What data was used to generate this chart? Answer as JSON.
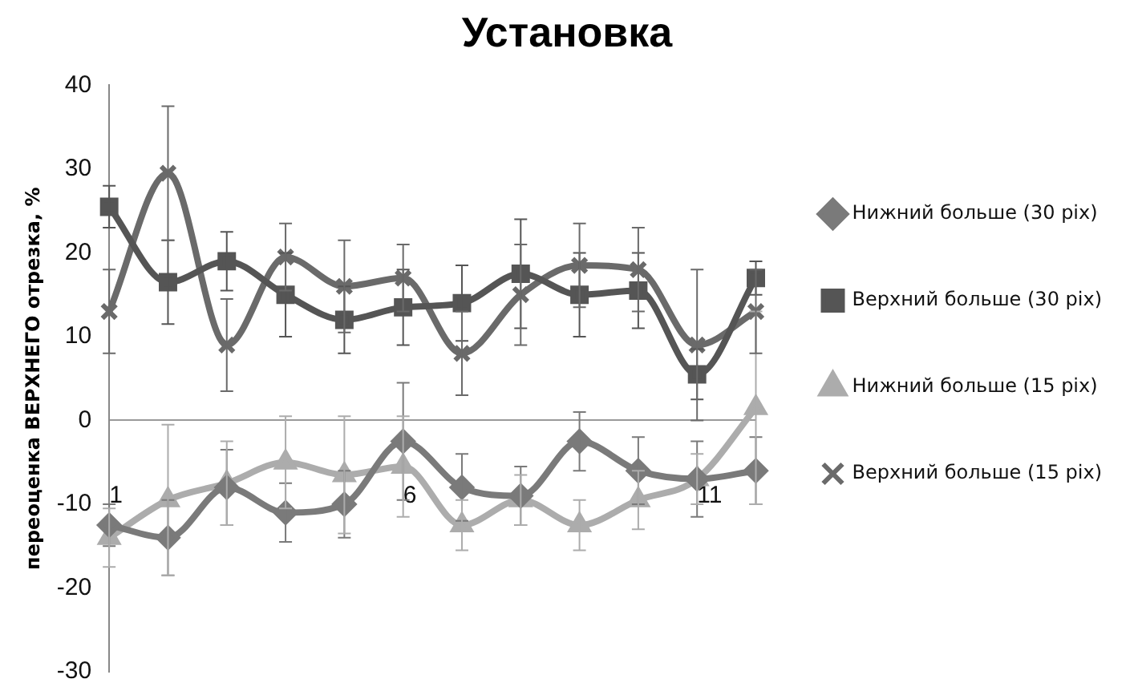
{
  "chart_data": {
    "type": "line",
    "title": "Установка",
    "ylabel": "переоценка ВЕРХНЕГО отрезка, %",
    "categories": [
      "1",
      null,
      null,
      null,
      null,
      "6",
      null,
      null,
      null,
      null,
      "11",
      null
    ],
    "ylim": [
      -30,
      40
    ],
    "yticks": [
      -30,
      -20,
      -10,
      0,
      10,
      20,
      30,
      40
    ],
    "grid": false,
    "legend": "right",
    "series": [
      {
        "name": "Нижний больше (30 pix)",
        "color": "#7a7a7a",
        "marker": "diamond",
        "values": [
          -12.5,
          -14,
          -8,
          -11,
          -10,
          -2.5,
          -8,
          -9,
          -2.5,
          -6,
          -7,
          -6
        ],
        "errors": [
          2.5,
          4.5,
          4.5,
          3.5,
          4,
          7,
          4,
          3.5,
          3.5,
          4,
          4.5,
          4
        ]
      },
      {
        "name": "Верхний больше (30 pix)",
        "color": "#555555",
        "marker": "square",
        "values": [
          25.5,
          16.5,
          19,
          15,
          12,
          13.5,
          14,
          17.5,
          15,
          15.5,
          5.5,
          17
        ],
        "errors": [
          2.5,
          5,
          3.5,
          5,
          4,
          4.5,
          4.5,
          6.5,
          5,
          4.5,
          3,
          2
        ]
      },
      {
        "name": "Нижний больше (15 pix)",
        "color": "#acacac",
        "marker": "triangle",
        "values": [
          -14,
          -9.5,
          -7.5,
          -5,
          -6.5,
          -5.5,
          -12.5,
          -9.5,
          -12.5,
          -9.5,
          -7,
          1.5
        ],
        "errors": [
          3.5,
          9,
          5,
          5.5,
          7,
          6,
          3,
          3,
          3,
          3.5,
          3,
          11.5
        ]
      },
      {
        "name": "Верхний больше (15 pix)",
        "color": "#6a6a6a",
        "marker": "cross",
        "values": [
          13,
          29.5,
          9,
          19.5,
          16,
          17,
          8,
          15,
          18.5,
          18,
          9,
          13
        ],
        "errors": [
          5,
          8,
          5.5,
          4,
          5.5,
          4,
          5,
          6,
          5,
          5,
          9,
          5
        ]
      }
    ]
  }
}
